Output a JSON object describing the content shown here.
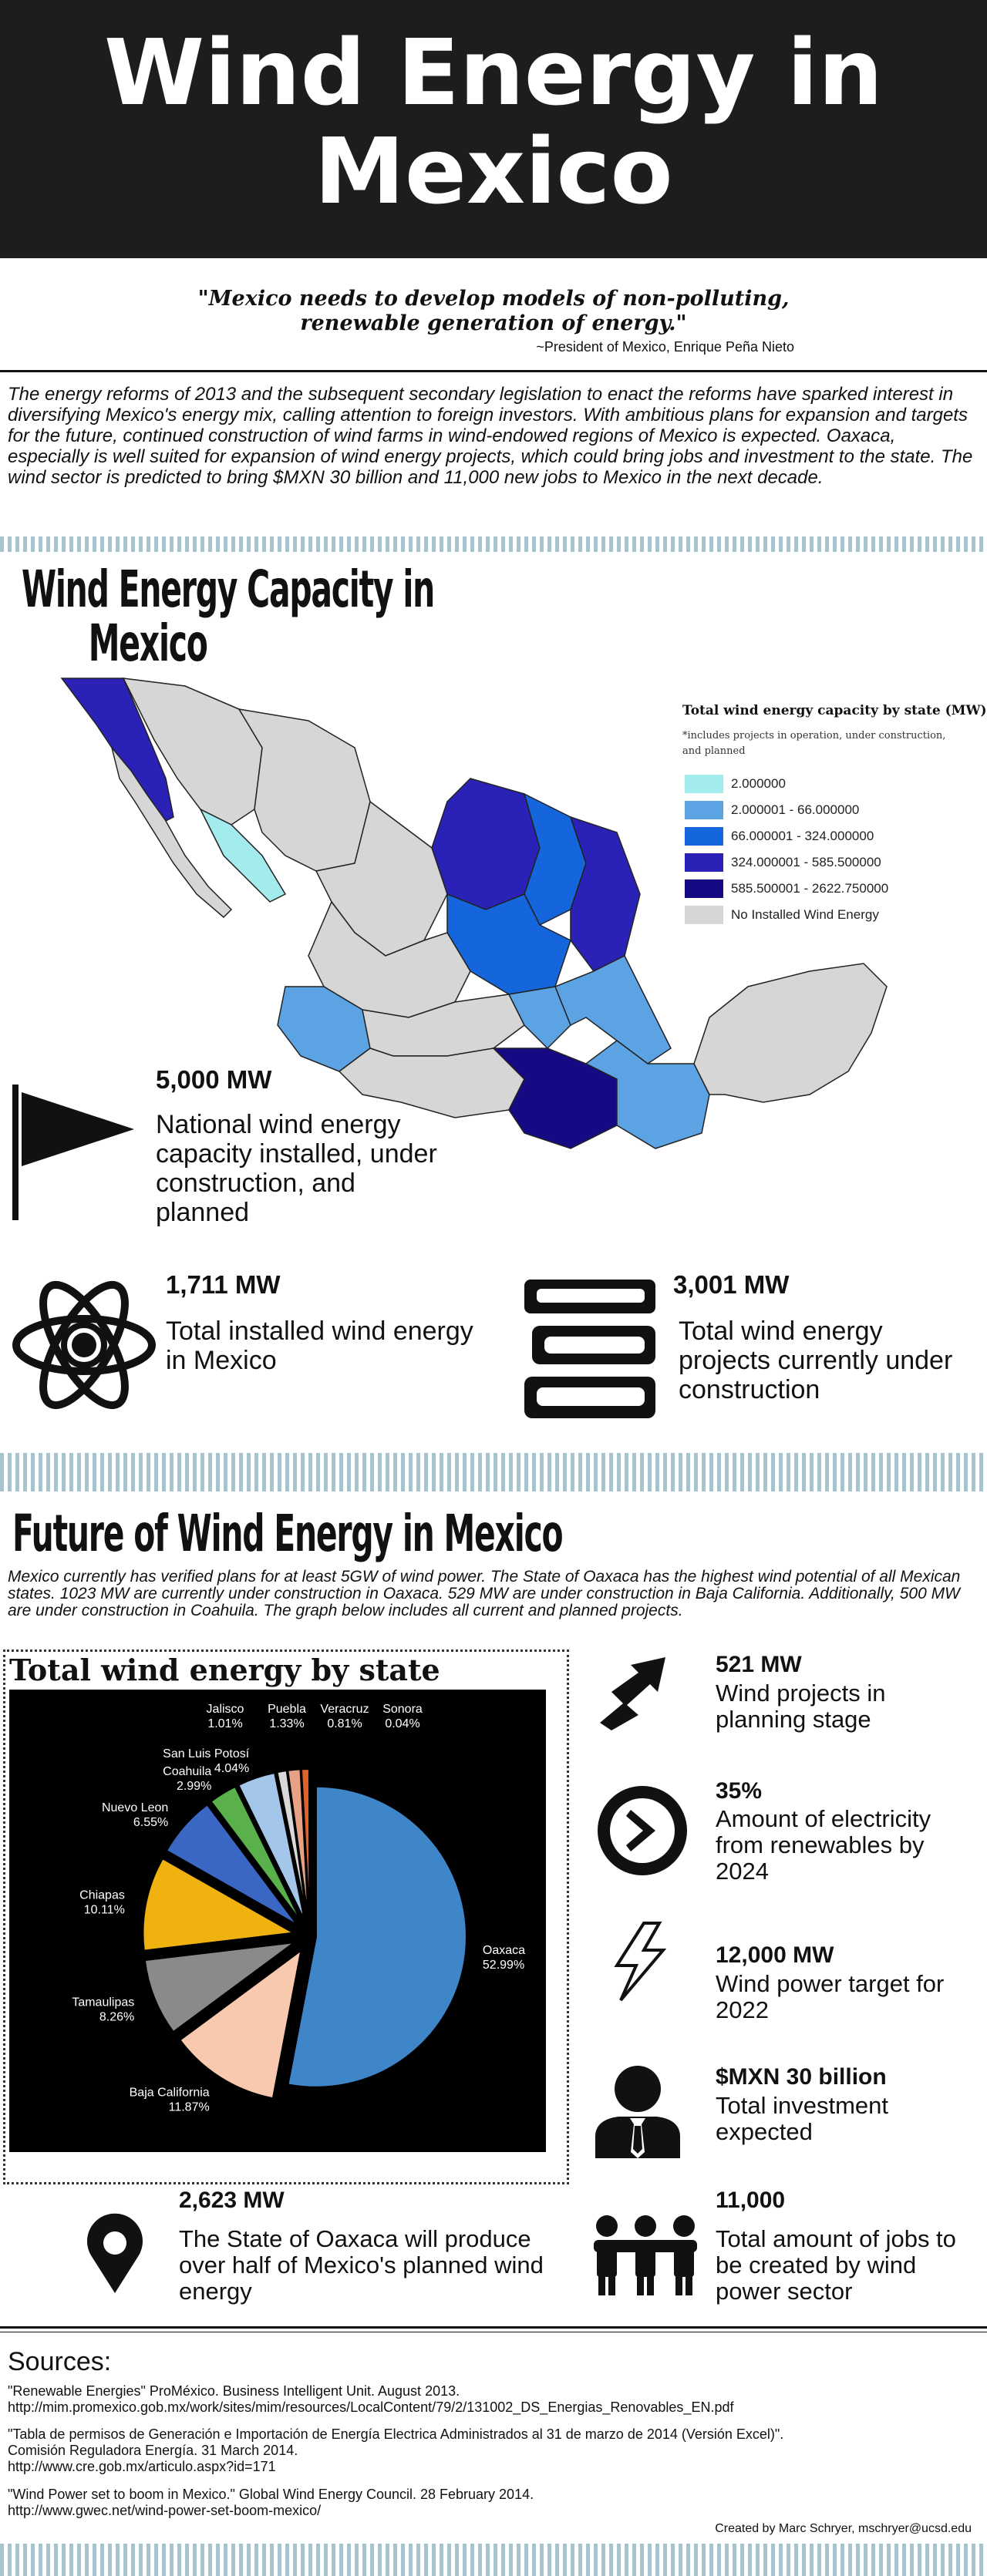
{
  "header": {
    "title_line1": "Wind Energy in",
    "title_line2": "Mexico"
  },
  "quote": {
    "text": "\"Mexico needs to develop models of  non-polluting, renewable generation of energy.\"",
    "attribution": "~President of Mexico, Enrique Peña Nieto"
  },
  "intro": "The energy reforms of 2013 and the subsequent secondary legislation to enact the reforms have sparked interest in diversifying Mexico's energy mix, calling attention to foreign investors. With ambitious plans for expansion and targets for the future, continued construction of wind farms in wind-endowed regions of Mexico is expected. Oaxaca, especially is well suited for expansion of wind energy projects, which could bring jobs and investment to the state. The wind sector is predicted to bring $MXN 30 billion and 11,000 new jobs to Mexico in the next decade.",
  "capacity": {
    "title_line1": "Wind Energy Capacity in",
    "title_line2": "Mexico",
    "legend": {
      "title": "Total wind energy capacity by state (MW)",
      "note": "*includes projects in operation, under construction, and planned",
      "items": [
        {
          "label": "2.000000",
          "color": "#a2ecee"
        },
        {
          "label": "2.000001 - 66.000000",
          "color": "#5ca3e4"
        },
        {
          "label": "66.000001 - 324.000000",
          "color": "#1566dd"
        },
        {
          "label": "324.000001 - 585.500000",
          "color": "#2a22b7"
        },
        {
          "label": "585.500001 - 2622.750000",
          "color": "#160a84"
        },
        {
          "label": "No Installed Wind Energy",
          "color": "#d6d6d6"
        }
      ]
    },
    "stats": [
      {
        "number": "5,000 MW",
        "text": "National wind energy capacity installed, under construction, and planned",
        "icon": "flag-icon"
      },
      {
        "number": "1,711 MW",
        "text": "Total installed wind energy in Mexico",
        "icon": "atom-icon"
      },
      {
        "number": "3,001 MW",
        "text": "Total wind energy projects currently under construction",
        "icon": "books-icon"
      }
    ]
  },
  "future": {
    "title": "Future of Wind Energy in Mexico",
    "text": "Mexico currently has verified plans for at least 5GW of wind power. The State of Oaxaca has the highest wind potential of all Mexican states. 1023 MW are currently under construction in Oaxaca. 529 MW are under construction in Baja California. Additionally, 500 MW are under construction in Coahuila. The graph below includes all current and planned projects.",
    "side_stats": [
      {
        "number": "521 MW",
        "text": "Wind projects in planning stage",
        "icon": "zigzag-arrow-icon"
      },
      {
        "number": "35%",
        "text": "Amount of electricity from renewables by 2024",
        "icon": "next-circle-icon"
      },
      {
        "number": "12,000 MW",
        "text": "Wind power target for 2022",
        "icon": "lightning-icon"
      },
      {
        "number": "$MXN 30 billion",
        "text": "Total investment expected",
        "icon": "businessman-icon"
      },
      {
        "number": "11,000",
        "text": "Total amount of jobs to be created by wind power sector",
        "icon": "people-icon"
      }
    ],
    "oaxaca_stat": {
      "number": "2,623 MW",
      "text": "The State of Oaxaca will produce over half of Mexico's planned wind energy",
      "icon": "map-pin-icon"
    }
  },
  "chart_data": {
    "type": "pie",
    "title": "Total wind energy by state",
    "categories": [
      "Oaxaca",
      "Baja California",
      "Tamaulipas",
      "Chiapas",
      "Nuevo Leon",
      "Coahuila",
      "San Luis Potosí",
      "Jalisco",
      "Puebla",
      "Veracruz",
      "Sonora"
    ],
    "values": [
      52.99,
      11.87,
      8.26,
      10.11,
      6.55,
      2.99,
      4.04,
      1.01,
      1.33,
      0.81,
      0.04
    ],
    "labels": [
      "52.99%",
      "11.87%",
      "8.26%",
      "10.11%",
      "6.55%",
      "2.99%",
      "4.04%",
      "1.01%",
      "1.33%",
      "0.81%",
      "0.04%"
    ],
    "colors": [
      "#3f86c8",
      "#f8c9ae",
      "#8a8a8a",
      "#efb20f",
      "#3a67c4",
      "#5ab04a",
      "#a3c6ea",
      "#d9d9d9",
      "#e7a184",
      "#e0612a",
      "#6a6a6a"
    ]
  },
  "sources": {
    "title": "Sources:",
    "items": [
      "\"Renewable Energies\" ProMéxico. Business Intelligent Unit. August 2013.\nhttp://mim.promexico.gob.mx/work/sites/mim/resources/LocalContent/79/2/131002_DS_Energias_Renovables_EN.pdf",
      "\"Tabla de permisos de Generación e Importación de Energía Electrica Administrados al 31 de marzo de 2014 (Versión Excel)\".\nComisión Reguladora Energía. 31 March 2014.\nhttp://www.cre.gob.mx/articulo.aspx?id=171",
      "\"Wind Power set to boom in Mexico.\" Global Wind Energy Council. 28 February 2014.\nhttp://www.gwec.net/wind-power-set-boom-mexico/"
    ],
    "credit": "Created by Marc Schryer, mschryer@ucsd.edu"
  }
}
